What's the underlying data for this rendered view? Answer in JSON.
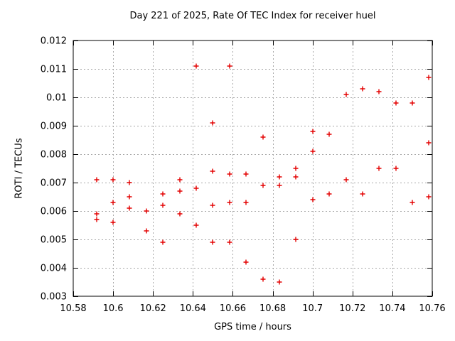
{
  "chart_data": {
    "type": "scatter",
    "title": "Day 221 of 2025, Rate Of TEC Index for receiver huel",
    "xlabel": "GPS time / hours",
    "ylabel": "ROTI / TECUs",
    "xlim": [
      10.58,
      10.76
    ],
    "ylim": [
      0.003,
      0.012
    ],
    "grid": true,
    "legend_position": "none",
    "marker": "plus",
    "marker_color": "#e30000",
    "grid_color": "#a8a8a8",
    "xticks": [
      [
        10.58,
        "10.58"
      ],
      [
        10.6,
        "10.6"
      ],
      [
        10.62,
        "10.62"
      ],
      [
        10.64,
        "10.64"
      ],
      [
        10.66,
        "10.66"
      ],
      [
        10.68,
        "10.68"
      ],
      [
        10.7,
        "10.7"
      ],
      [
        10.72,
        "10.72"
      ],
      [
        10.74,
        "10.74"
      ],
      [
        10.76,
        "10.76"
      ]
    ],
    "yticks": [
      [
        0.003,
        "0.003"
      ],
      [
        0.004,
        "0.004"
      ],
      [
        0.005,
        "0.005"
      ],
      [
        0.006,
        "0.006"
      ],
      [
        0.007,
        "0.007"
      ],
      [
        0.008,
        "0.008"
      ],
      [
        0.009,
        "0.009"
      ],
      [
        0.01,
        "0.01"
      ],
      [
        0.011,
        "0.011"
      ],
      [
        0.012,
        "0.012"
      ]
    ],
    "series": [
      {
        "name": "ROTI",
        "points": [
          [
            10.5917,
            0.0071
          ],
          [
            10.5917,
            0.0059
          ],
          [
            10.5917,
            0.0057
          ],
          [
            10.6,
            0.0071
          ],
          [
            10.6,
            0.0063
          ],
          [
            10.6,
            0.0056
          ],
          [
            10.6083,
            0.007
          ],
          [
            10.6083,
            0.0065
          ],
          [
            10.6083,
            0.0061
          ],
          [
            10.6167,
            0.006
          ],
          [
            10.6167,
            0.0053
          ],
          [
            10.625,
            0.0066
          ],
          [
            10.625,
            0.0062
          ],
          [
            10.625,
            0.0049
          ],
          [
            10.6333,
            0.0071
          ],
          [
            10.6333,
            0.0067
          ],
          [
            10.6333,
            0.0059
          ],
          [
            10.6417,
            0.0111
          ],
          [
            10.6417,
            0.0068
          ],
          [
            10.6417,
            0.0055
          ],
          [
            10.65,
            0.0091
          ],
          [
            10.65,
            0.0074
          ],
          [
            10.65,
            0.0062
          ],
          [
            10.65,
            0.0049
          ],
          [
            10.6583,
            0.0111
          ],
          [
            10.6583,
            0.0073
          ],
          [
            10.6583,
            0.0063
          ],
          [
            10.6583,
            0.0049
          ],
          [
            10.6667,
            0.0073
          ],
          [
            10.6667,
            0.0063
          ],
          [
            10.6667,
            0.0042
          ],
          [
            10.675,
            0.0086
          ],
          [
            10.675,
            0.0069
          ],
          [
            10.675,
            0.0036
          ],
          [
            10.6833,
            0.0072
          ],
          [
            10.6833,
            0.0069
          ],
          [
            10.6833,
            0.0035
          ],
          [
            10.6917,
            0.0075
          ],
          [
            10.6917,
            0.0072
          ],
          [
            10.6917,
            0.005
          ],
          [
            10.7,
            0.0088
          ],
          [
            10.7,
            0.0081
          ],
          [
            10.7,
            0.0064
          ],
          [
            10.7083,
            0.0087
          ],
          [
            10.7083,
            0.0066
          ],
          [
            10.7167,
            0.0101
          ],
          [
            10.7167,
            0.0071
          ],
          [
            10.725,
            0.0103
          ],
          [
            10.725,
            0.0066
          ],
          [
            10.7333,
            0.0102
          ],
          [
            10.7333,
            0.0075
          ],
          [
            10.7417,
            0.0098
          ],
          [
            10.7417,
            0.0075
          ],
          [
            10.75,
            0.0098
          ],
          [
            10.75,
            0.0063
          ],
          [
            10.7583,
            0.0107
          ],
          [
            10.7583,
            0.0084
          ],
          [
            10.7583,
            0.0065
          ]
        ]
      }
    ]
  }
}
